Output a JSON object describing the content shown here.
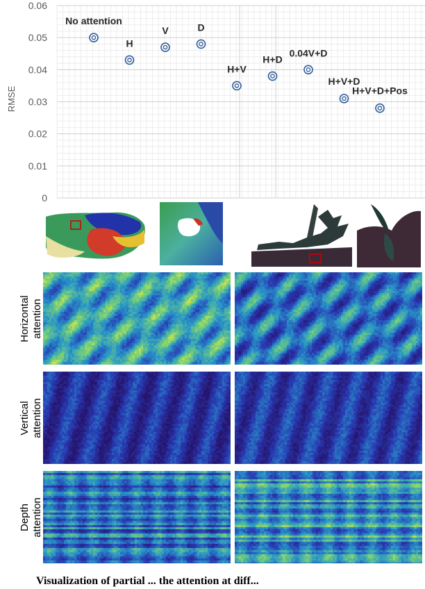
{
  "chart_data": {
    "type": "scatter",
    "title": "",
    "xlabel": "",
    "ylabel": "RMSE",
    "ylim": [
      0,
      0.06
    ],
    "yticks": [
      "0",
      "0.01",
      "0.02",
      "0.03",
      "0.04",
      "0.05",
      "0.06"
    ],
    "grid": true,
    "points": [
      {
        "label": "No attention",
        "x": 1,
        "y": 0.05
      },
      {
        "label": "H",
        "x": 2,
        "y": 0.043
      },
      {
        "label": "V",
        "x": 3,
        "y": 0.047
      },
      {
        "label": "D",
        "x": 4,
        "y": 0.048
      },
      {
        "label": "H+V",
        "x": 5,
        "y": 0.035
      },
      {
        "label": "H+D",
        "x": 6,
        "y": 0.038
      },
      {
        "label": "0.04V+D",
        "x": 7,
        "y": 0.04
      },
      {
        "label": "H+V+D",
        "x": 8,
        "y": 0.031
      },
      {
        "label": "H+V+D+Pos",
        "x": 9,
        "y": 0.028
      }
    ],
    "marker_color": "#2e5c99"
  },
  "row_labels": [
    [
      "Horizontal",
      "attention"
    ],
    [
      "Vertical",
      "attention"
    ],
    [
      "Depth",
      "attention"
    ]
  ],
  "caption": "Visualization of partial ... the attention at diff..."
}
